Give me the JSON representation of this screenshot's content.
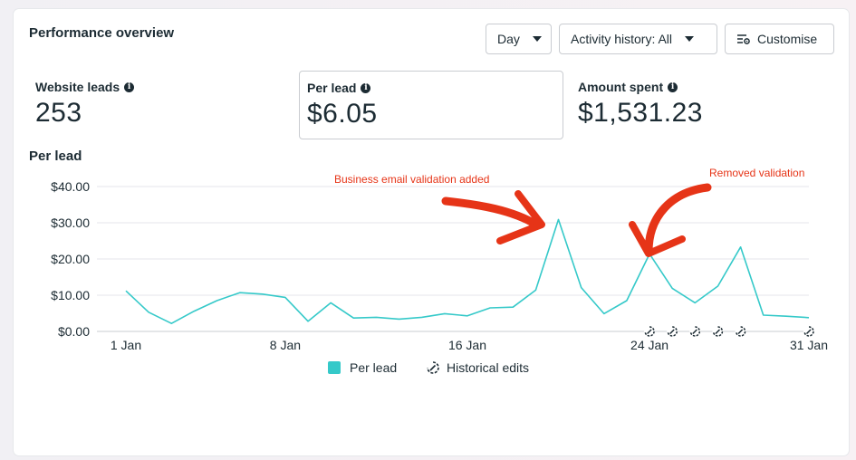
{
  "panel": {
    "title": "Performance overview",
    "buttons": {
      "day": "Day",
      "activity": "Activity history: All",
      "customise": "Customise"
    }
  },
  "metrics": [
    {
      "label": "Website leads",
      "value": "253"
    },
    {
      "label": "Per lead",
      "value": "$6.05"
    },
    {
      "label": "Amount spent",
      "value": "$1,531.23"
    }
  ],
  "chart_title": "Per lead",
  "annotations": {
    "left": "Business email validation added",
    "right": "Removed validation"
  },
  "legend": {
    "series": "Per lead",
    "edits": "Historical edits"
  },
  "colors": {
    "line": "#35c9c9",
    "annotation": "#e63417",
    "grid": "#e4e6eb"
  },
  "chart_data": {
    "type": "line",
    "title": "Per lead",
    "y_ticks": [
      "$0.00",
      "$10.00",
      "$20.00",
      "$30.00",
      "$40.00"
    ],
    "ylim": [
      0,
      40
    ],
    "x_ticks": [
      {
        "day": 1,
        "label": "1 Jan"
      },
      {
        "day": 8,
        "label": "8 Jan"
      },
      {
        "day": 16,
        "label": "16 Jan"
      },
      {
        "day": 24,
        "label": "24 Jan"
      },
      {
        "day": 31,
        "label": "31 Jan"
      }
    ],
    "series": [
      {
        "name": "Per lead",
        "x": [
          1,
          2,
          3,
          4,
          5,
          6,
          7,
          8,
          9,
          10,
          11,
          12,
          13,
          14,
          15,
          16,
          17,
          18,
          19,
          20,
          21,
          22,
          23,
          24,
          25,
          26,
          27,
          28,
          29,
          30,
          31
        ],
        "values": [
          11.2,
          5.3,
          2.2,
          5.6,
          8.5,
          10.7,
          10.3,
          9.4,
          2.8,
          7.9,
          3.7,
          3.9,
          3.4,
          3.9,
          4.9,
          4.3,
          6.5,
          6.7,
          11.4,
          30.9,
          12.1,
          4.9,
          8.5,
          21.4,
          11.9,
          7.9,
          12.5,
          23.3,
          4.5,
          4.2,
          3.8
        ]
      }
    ],
    "historical_edits": [
      24,
      25,
      26,
      27,
      28,
      31
    ],
    "grid": true,
    "legend_position": "bottom"
  }
}
